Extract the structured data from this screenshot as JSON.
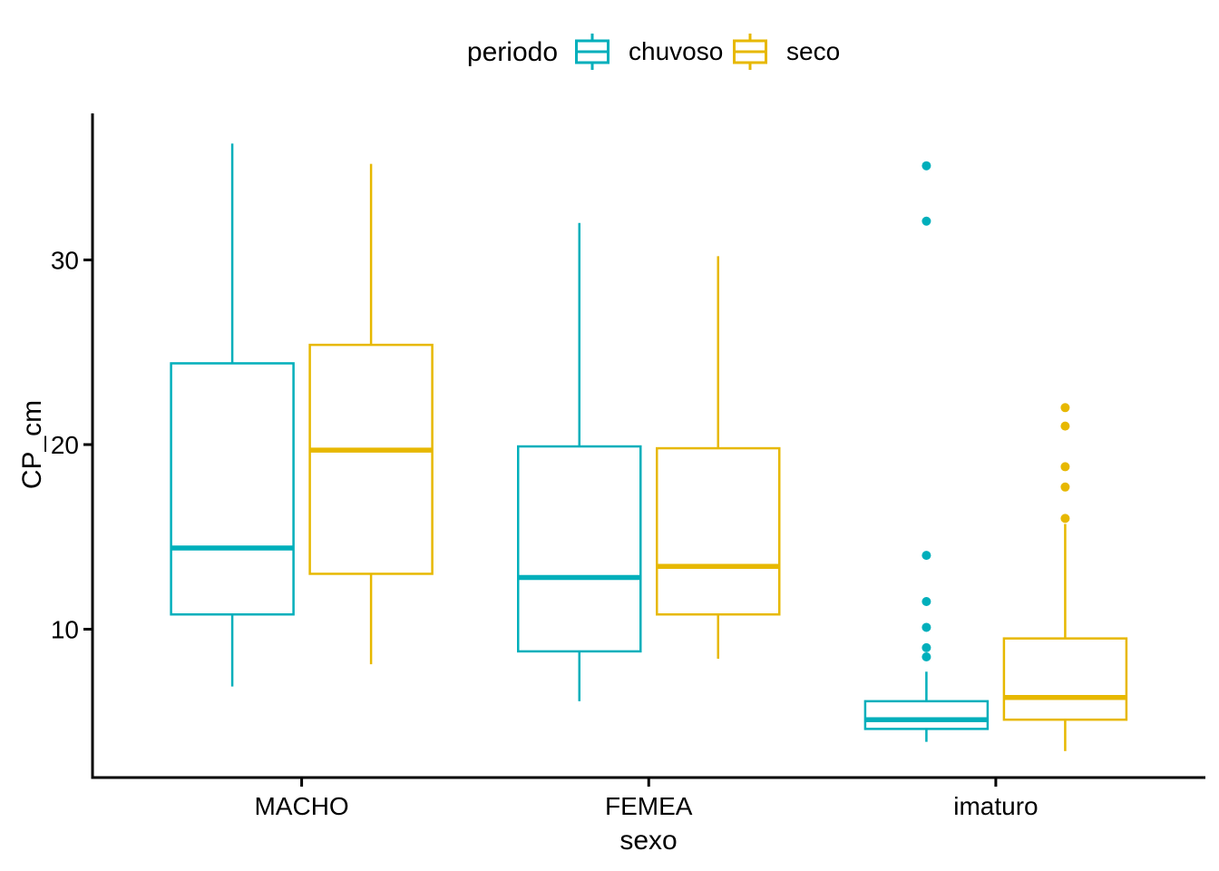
{
  "chart_data": {
    "type": "boxplot",
    "legend": {
      "title": "periodo",
      "position": "top"
    },
    "xlabel": "sexo",
    "ylabel": "CP_cm",
    "categories": [
      "MACHO",
      "FEMEA",
      "imaturo"
    ],
    "yticks": [
      10,
      20,
      30
    ],
    "ylim": [
      2.0,
      37.9
    ],
    "grid": "off",
    "background_color": "#FFFFFF",
    "axis_color": "#000000",
    "series": [
      {
        "name": "chuvoso",
        "color": "#00AFBB",
        "boxes": [
          {
            "category": "MACHO",
            "min": 6.9,
            "q1": 10.8,
            "median": 14.4,
            "q3": 24.4,
            "max": 36.3,
            "outliers": []
          },
          {
            "category": "FEMEA",
            "min": 6.1,
            "q1": 8.8,
            "median": 12.8,
            "q3": 19.9,
            "max": 32.0,
            "outliers": []
          },
          {
            "category": "imaturo",
            "min": 3.9,
            "q1": 4.6,
            "median": 5.1,
            "q3": 6.1,
            "max": 7.7,
            "outliers": [
              35.1,
              32.1,
              14.0,
              11.5,
              10.1,
              9.0,
              8.5
            ]
          }
        ]
      },
      {
        "name": "seco",
        "color": "#E7B800",
        "boxes": [
          {
            "category": "MACHO",
            "min": 8.1,
            "q1": 13.0,
            "median": 19.7,
            "q3": 25.4,
            "max": 35.2,
            "outliers": []
          },
          {
            "category": "FEMEA",
            "min": 8.4,
            "q1": 10.8,
            "median": 13.4,
            "q3": 19.8,
            "max": 30.2,
            "outliers": []
          },
          {
            "category": "imaturo",
            "min": 3.4,
            "q1": 5.1,
            "median": 6.3,
            "q3": 9.5,
            "max": 15.7,
            "outliers": [
              22.0,
              21.0,
              18.8,
              17.7,
              16.0
            ]
          }
        ]
      }
    ]
  }
}
